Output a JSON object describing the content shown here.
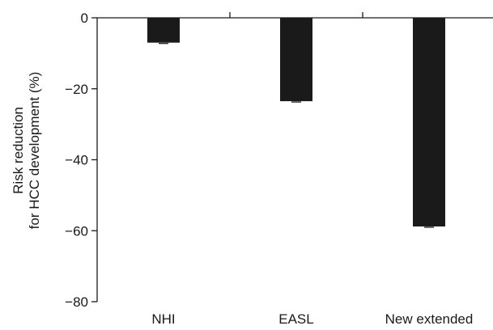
{
  "chart_data": {
    "type": "bar",
    "title": "",
    "xlabel": "",
    "ylabel_lines": [
      "Risk reduction",
      "for HCC development (%)"
    ],
    "categories": [
      "NHI",
      "EASL",
      "New extended"
    ],
    "values": [
      -7,
      -23.5,
      -58.8
    ],
    "ylim": [
      -80,
      0
    ],
    "yticks": [
      0,
      -20,
      -40,
      -60,
      -80
    ],
    "ytick_labels": [
      "0",
      "−20",
      "−40",
      "−60",
      "−80"
    ],
    "bar_color": "#1a1a1a",
    "grid": false,
    "legend": "none"
  }
}
